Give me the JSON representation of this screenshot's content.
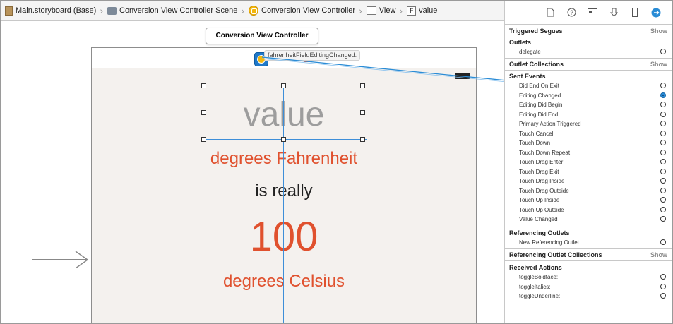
{
  "breadcrumb": [
    {
      "label": "Main.storyboard (Base)",
      "icon": "storyboard-icon"
    },
    {
      "label": "Conversion View Controller Scene",
      "icon": "scene-icon"
    },
    {
      "label": "Conversion View Controller",
      "icon": "view-controller-icon"
    },
    {
      "label": "View",
      "icon": "view-icon"
    },
    {
      "label": "value",
      "icon": "text-field-icon"
    }
  ],
  "canvas": {
    "tooltip": "Conversion View Controller",
    "action_label": "fahrenheitFieldEditingChanged:",
    "value_text": "value",
    "fahrenheit_text": "degrees Fahrenheit",
    "is_really_text": "is really",
    "celsius_value": "100",
    "celsius_text": "degrees Celsius"
  },
  "inspector": {
    "toolbar_icons": [
      "file-icon",
      "help-icon",
      "identity-icon",
      "attributes-icon",
      "size-icon",
      "connections-icon"
    ],
    "triggered_segues": {
      "title": "Triggered Segues",
      "show": "Show"
    },
    "outlets": {
      "title": "Outlets",
      "items": [
        "delegate"
      ]
    },
    "outlet_collections": {
      "title": "Outlet Collections",
      "show": "Show"
    },
    "sent_events": {
      "title": "Sent Events",
      "items": [
        "Did End On Exit",
        "Editing Changed",
        "Editing Did Begin",
        "Editing Did End",
        "Primary Action Triggered",
        "Touch Cancel",
        "Touch Down",
        "Touch Down Repeat",
        "Touch Drag Enter",
        "Touch Drag Exit",
        "Touch Drag Inside",
        "Touch Drag Outside",
        "Touch Up Inside",
        "Touch Up Outside",
        "Value Changed"
      ],
      "connected": "Editing Changed"
    },
    "referencing_outlets": {
      "title": "Referencing Outlets",
      "items": [
        "New Referencing Outlet"
      ]
    },
    "referencing_outlet_collections": {
      "title": "Referencing Outlet Collections",
      "show": "Show"
    },
    "received_actions": {
      "title": "Received Actions",
      "items": [
        "toggleBoldface:",
        "toggleItalics:",
        "toggleUnderline:"
      ]
    }
  },
  "colors": {
    "accent": "#2a8cd6",
    "label_red": "#e0512e",
    "placeholder_gray": "#9d9d9d"
  }
}
